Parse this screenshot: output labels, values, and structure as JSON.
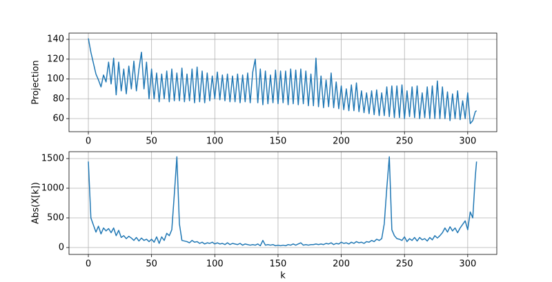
{
  "chart_data": [
    {
      "type": "line",
      "ylabel": "Projection",
      "x": [
        0,
        2,
        4,
        6,
        8,
        10,
        12,
        14,
        16,
        18,
        20,
        22,
        24,
        26,
        28,
        30,
        32,
        34,
        36,
        38,
        40,
        42,
        44,
        46,
        48,
        50,
        52,
        54,
        56,
        58,
        60,
        62,
        64,
        66,
        68,
        70,
        72,
        74,
        76,
        78,
        80,
        82,
        84,
        86,
        88,
        90,
        92,
        94,
        96,
        98,
        100,
        102,
        104,
        106,
        108,
        110,
        112,
        114,
        116,
        118,
        120,
        122,
        124,
        126,
        128,
        130,
        132,
        134,
        136,
        138,
        140,
        142,
        144,
        146,
        148,
        150,
        152,
        154,
        156,
        158,
        160,
        162,
        164,
        166,
        168,
        170,
        172,
        174,
        176,
        178,
        180,
        182,
        184,
        186,
        188,
        190,
        192,
        194,
        196,
        198,
        200,
        202,
        204,
        206,
        208,
        210,
        212,
        214,
        216,
        218,
        220,
        222,
        224,
        226,
        228,
        230,
        232,
        234,
        236,
        238,
        240,
        242,
        244,
        246,
        248,
        250,
        252,
        254,
        256,
        258,
        260,
        262,
        264,
        266,
        268,
        270,
        272,
        274,
        276,
        278,
        280,
        282,
        284,
        286,
        288,
        290,
        292,
        294,
        296,
        298,
        300,
        302,
        304,
        306,
        307
      ],
      "series": [
        {
          "color": "#1f77b4",
          "values": [
            141,
            127,
            116,
            105,
            99,
            92,
            104,
            97,
            117,
            95,
            121,
            84,
            117,
            88,
            110,
            85,
            113,
            90,
            118,
            88,
            110,
            127,
            90,
            117,
            80,
            110,
            80,
            106,
            77,
            105,
            80,
            108,
            77,
            110,
            78,
            106,
            78,
            111,
            77,
            105,
            78,
            110,
            76,
            112,
            77,
            108,
            76,
            106,
            78,
            103,
            80,
            107,
            79,
            104,
            78,
            105,
            77,
            103,
            77,
            105,
            76,
            104,
            77,
            106,
            76,
            107,
            120,
            76,
            110,
            74,
            108,
            75,
            104,
            76,
            109,
            75,
            108,
            76,
            108,
            74,
            110,
            75,
            109,
            74,
            110,
            75,
            108,
            73,
            105,
            73,
            121,
            72,
            103,
            71,
            99,
            72,
            106,
            71,
            97,
            70,
            93,
            69,
            90,
            68,
            94,
            68,
            96,
            67,
            88,
            66,
            86,
            65,
            88,
            64,
            89,
            63,
            86,
            63,
            92,
            62,
            93,
            61,
            93,
            61,
            94,
            60,
            88,
            62,
            92,
            61,
            93,
            60,
            86,
            61,
            92,
            60,
            93,
            60,
            98,
            60,
            92,
            60,
            87,
            58,
            85,
            60,
            88,
            59,
            78,
            60,
            86,
            55,
            58,
            67,
            68
          ]
        }
      ],
      "xlim": [
        -15.3,
        323
      ],
      "xticks": [
        0,
        50,
        100,
        150,
        200,
        250,
        300
      ],
      "ylim": [
        46.8,
        146.3
      ],
      "yticks": [
        60,
        80,
        100,
        120,
        140
      ],
      "grid": true
    },
    {
      "type": "line",
      "xlabel": "k",
      "ylabel": "Abs(X[k])",
      "x": [
        0,
        2,
        4,
        6,
        8,
        10,
        12,
        14,
        16,
        18,
        20,
        22,
        24,
        26,
        28,
        30,
        32,
        34,
        36,
        38,
        40,
        42,
        44,
        46,
        48,
        50,
        52,
        54,
        56,
        58,
        60,
        62,
        64,
        66,
        68,
        70,
        72,
        74,
        76,
        78,
        80,
        82,
        84,
        86,
        88,
        90,
        92,
        94,
        96,
        98,
        100,
        102,
        104,
        106,
        108,
        110,
        112,
        114,
        116,
        118,
        120,
        122,
        124,
        126,
        128,
        130,
        132,
        134,
        136,
        138,
        140,
        142,
        144,
        146,
        148,
        150,
        152,
        154,
        156,
        158,
        160,
        162,
        164,
        166,
        168,
        170,
        172,
        174,
        176,
        178,
        180,
        182,
        184,
        186,
        188,
        190,
        192,
        194,
        196,
        198,
        200,
        202,
        204,
        206,
        208,
        210,
        212,
        214,
        216,
        218,
        220,
        222,
        224,
        226,
        228,
        230,
        232,
        234,
        236,
        238,
        240,
        242,
        244,
        246,
        248,
        250,
        252,
        254,
        256,
        258,
        260,
        262,
        264,
        266,
        268,
        270,
        272,
        274,
        276,
        278,
        280,
        282,
        284,
        286,
        288,
        290,
        292,
        294,
        296,
        298,
        300,
        302,
        304,
        306,
        307
      ],
      "series": [
        {
          "color": "#1f77b4",
          "values": [
            1450,
            500,
            380,
            260,
            360,
            230,
            330,
            280,
            320,
            250,
            330,
            200,
            290,
            170,
            200,
            150,
            190,
            160,
            120,
            170,
            110,
            160,
            120,
            140,
            100,
            140,
            90,
            180,
            70,
            180,
            120,
            240,
            200,
            300,
            900,
            1530,
            400,
            120,
            110,
            100,
            80,
            120,
            90,
            100,
            70,
            90,
            60,
            80,
            70,
            90,
            60,
            80,
            60,
            70,
            50,
            80,
            50,
            70,
            60,
            50,
            70,
            40,
            60,
            50,
            40,
            50,
            40,
            60,
            30,
            120,
            40,
            50,
            40,
            50,
            30,
            40,
            30,
            40,
            30,
            50,
            40,
            60,
            40,
            60,
            80,
            40,
            50,
            40,
            50,
            50,
            60,
            50,
            60,
            50,
            70,
            60,
            80,
            50,
            70,
            60,
            90,
            70,
            80,
            60,
            90,
            70,
            100,
            80,
            90,
            70,
            100,
            90,
            120,
            100,
            140,
            120,
            150,
            400,
            1000,
            1530,
            300,
            200,
            150,
            140,
            120,
            180,
            100,
            150,
            120,
            170,
            110,
            170,
            130,
            150,
            110,
            170,
            130,
            200,
            160,
            200,
            250,
            330,
            260,
            350,
            280,
            330,
            250,
            330,
            390,
            450,
            300,
            600,
            500,
            1200,
            1450
          ]
        }
      ],
      "xlim": [
        -15.3,
        323
      ],
      "xticks": [
        0,
        50,
        100,
        150,
        200,
        250,
        300
      ],
      "ylim": [
        -116,
        1616
      ],
      "yticks": [
        0,
        500,
        1000,
        1500
      ],
      "grid": true
    }
  ]
}
